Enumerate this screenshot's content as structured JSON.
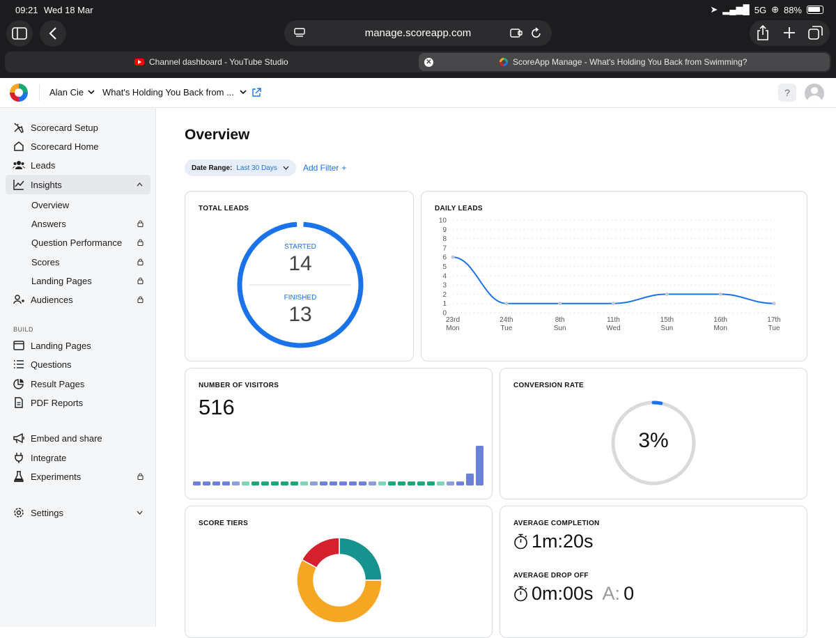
{
  "status": {
    "time": "09:21",
    "date": "Wed 18 Mar",
    "network": "5G",
    "battery": "88%"
  },
  "browser": {
    "url": "manage.scoreapp.com",
    "tabs": [
      {
        "label": "Channel dashboard - YouTube Studio"
      },
      {
        "label": "ScoreApp Manage - What's Holding You Back from Swimming?"
      }
    ]
  },
  "header": {
    "account": "Alan Cie",
    "scorecard": "What's Holding You Back from ...",
    "help": "?"
  },
  "sidebar": {
    "items": [
      {
        "label": "Scorecard Setup"
      },
      {
        "label": "Scorecard Home"
      },
      {
        "label": "Leads"
      },
      {
        "label": "Insights"
      }
    ],
    "insights_sub": [
      {
        "label": "Overview"
      },
      {
        "label": "Answers"
      },
      {
        "label": "Question Performance"
      },
      {
        "label": "Scores"
      },
      {
        "label": "Landing Pages"
      }
    ],
    "audiences": "Audiences",
    "build_heading": "BUILD",
    "build": [
      {
        "label": "Landing Pages"
      },
      {
        "label": "Questions"
      },
      {
        "label": "Result Pages"
      },
      {
        "label": "PDF Reports"
      }
    ],
    "more": [
      {
        "label": "Embed and share"
      },
      {
        "label": "Integrate"
      },
      {
        "label": "Experiments"
      }
    ],
    "settings": "Settings"
  },
  "main": {
    "title": "Overview",
    "filter": {
      "label": "Date Range:",
      "value": "Last 30 Days",
      "add": "Add Filter"
    },
    "total_leads": {
      "title": "TOTAL LEADS",
      "started_label": "STARTED",
      "started": "14",
      "finished_label": "FINISHED",
      "finished": "13"
    },
    "daily_leads": {
      "title": "DAILY LEADS"
    },
    "visitors": {
      "title": "NUMBER OF VISITORS",
      "value": "516"
    },
    "conversion": {
      "title": "CONVERSION RATE",
      "value": "3%",
      "fraction": 0.03
    },
    "score_tiers": {
      "title": "SCORE TIERS"
    },
    "avg_completion": {
      "title": "AVERAGE COMPLETION",
      "value": "1m:20s"
    },
    "avg_dropoff": {
      "title": "AVERAGE DROP OFF",
      "value": "0m:00s",
      "extra_label": "A:",
      "extra_value": "0"
    }
  },
  "colors": {
    "accent": "#1a73e8",
    "teal": "#16938f",
    "red": "#d7202e",
    "orange": "#f5a623",
    "green": "#1aa874",
    "bar_blue": "#6b80d8"
  },
  "chart_data": [
    {
      "type": "line",
      "title": "DAILY LEADS",
      "x": [
        "23rd Mon",
        "24th Tue",
        "8th Sun",
        "11th Wed",
        "15th Sun",
        "16th Mon",
        "17th Tue"
      ],
      "x_ticks": [
        [
          "23rd",
          "Mon"
        ],
        [
          "24th",
          "Tue"
        ],
        [
          "8th",
          "Sun"
        ],
        [
          "11th",
          "Wed"
        ],
        [
          "15th",
          "Sun"
        ],
        [
          "16th",
          "Mon"
        ],
        [
          "17th",
          "Tue"
        ]
      ],
      "y_ticks": [
        "0",
        "1",
        "2",
        "3",
        "4",
        "5",
        "6",
        "7",
        "8",
        "9",
        "10"
      ],
      "values": [
        6,
        1,
        1,
        1,
        2,
        2,
        1
      ],
      "ylim": [
        0,
        10
      ]
    },
    {
      "type": "bar",
      "title": "NUMBER OF VISITORS",
      "values": [
        1,
        1,
        1,
        1,
        1,
        1,
        1,
        1,
        1,
        1,
        1,
        1,
        1,
        1,
        1,
        1,
        1,
        1,
        1,
        1,
        1,
        1,
        1,
        1,
        1,
        1,
        1,
        1,
        3,
        10
      ],
      "colors": [
        "#6b80d8",
        "#6b80d8",
        "#6b80d8",
        "#6b80d8",
        "#8b9de0",
        "#7fd4b7",
        "#1aa874",
        "#1aa874",
        "#1aa874",
        "#1aa874",
        "#1aa874",
        "#7fd4b7",
        "#8b9de0",
        "#6b80d8",
        "#6b80d8",
        "#6b80d8",
        "#6b80d8",
        "#6b80d8",
        "#8b9de0",
        "#7fd4b7",
        "#1aa874",
        "#1aa874",
        "#1aa874",
        "#1aa874",
        "#1aa874",
        "#7fd4b7",
        "#8b9de0",
        "#6b80d8",
        "#6b80d8",
        "#6b80d8"
      ]
    },
    {
      "type": "pie",
      "title": "SCORE TIERS",
      "values": [
        25,
        58,
        17
      ],
      "colors": [
        "#16938f",
        "#f5a623",
        "#d7202e"
      ]
    }
  ]
}
